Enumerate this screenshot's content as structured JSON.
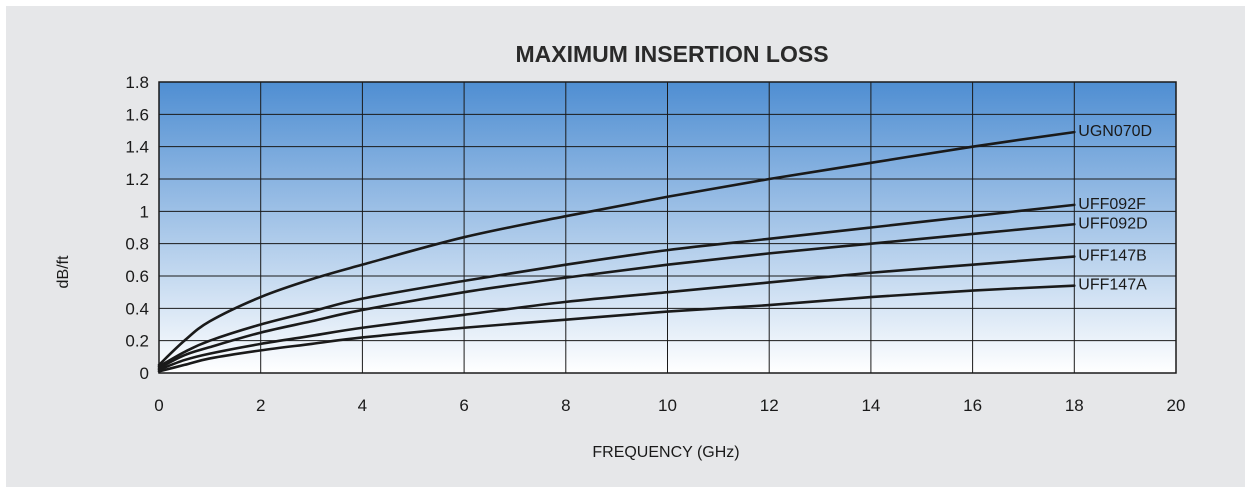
{
  "chart_data": {
    "type": "line",
    "title": "MAXIMUM INSERTION LOSS",
    "xlabel": "FREQUENCY (GHz)",
    "ylabel": "dB/ft",
    "xlim": [
      0,
      20
    ],
    "ylim": [
      0,
      1.8
    ],
    "x_ticks": [
      "0",
      "2",
      "4",
      "6",
      "8",
      "10",
      "12",
      "14",
      "16",
      "18",
      "20"
    ],
    "y_ticks": [
      "0",
      "0.2",
      "0.4",
      "0.6",
      "0.8",
      "1",
      "1.2",
      "1.4",
      "1.6",
      "1.8"
    ],
    "grid": true,
    "legend": "labels at line ends",
    "background_gradient": [
      "#4f8ed2",
      "#ffffff"
    ],
    "line_color": "#1a1a1a",
    "x": [
      0,
      0.5,
      1,
      2,
      3,
      4,
      6,
      8,
      10,
      12,
      14,
      16,
      18
    ],
    "series": [
      {
        "name": "UGN070D",
        "values": [
          0.05,
          0.2,
          0.32,
          0.47,
          0.58,
          0.67,
          0.84,
          0.97,
          1.09,
          1.2,
          1.3,
          1.4,
          1.49
        ]
      },
      {
        "name": "UFF092F",
        "values": [
          0.04,
          0.13,
          0.2,
          0.3,
          0.38,
          0.46,
          0.57,
          0.67,
          0.76,
          0.83,
          0.9,
          0.97,
          1.04
        ]
      },
      {
        "name": "UFF092D",
        "values": [
          0.03,
          0.11,
          0.16,
          0.25,
          0.32,
          0.39,
          0.5,
          0.59,
          0.67,
          0.74,
          0.8,
          0.86,
          0.92
        ]
      },
      {
        "name": "UFF147B",
        "values": [
          0.02,
          0.08,
          0.12,
          0.18,
          0.23,
          0.28,
          0.36,
          0.44,
          0.5,
          0.56,
          0.62,
          0.67,
          0.72
        ]
      },
      {
        "name": "UFF147A",
        "values": [
          0.01,
          0.05,
          0.09,
          0.14,
          0.18,
          0.22,
          0.28,
          0.33,
          0.38,
          0.42,
          0.47,
          0.51,
          0.54
        ]
      }
    ]
  }
}
